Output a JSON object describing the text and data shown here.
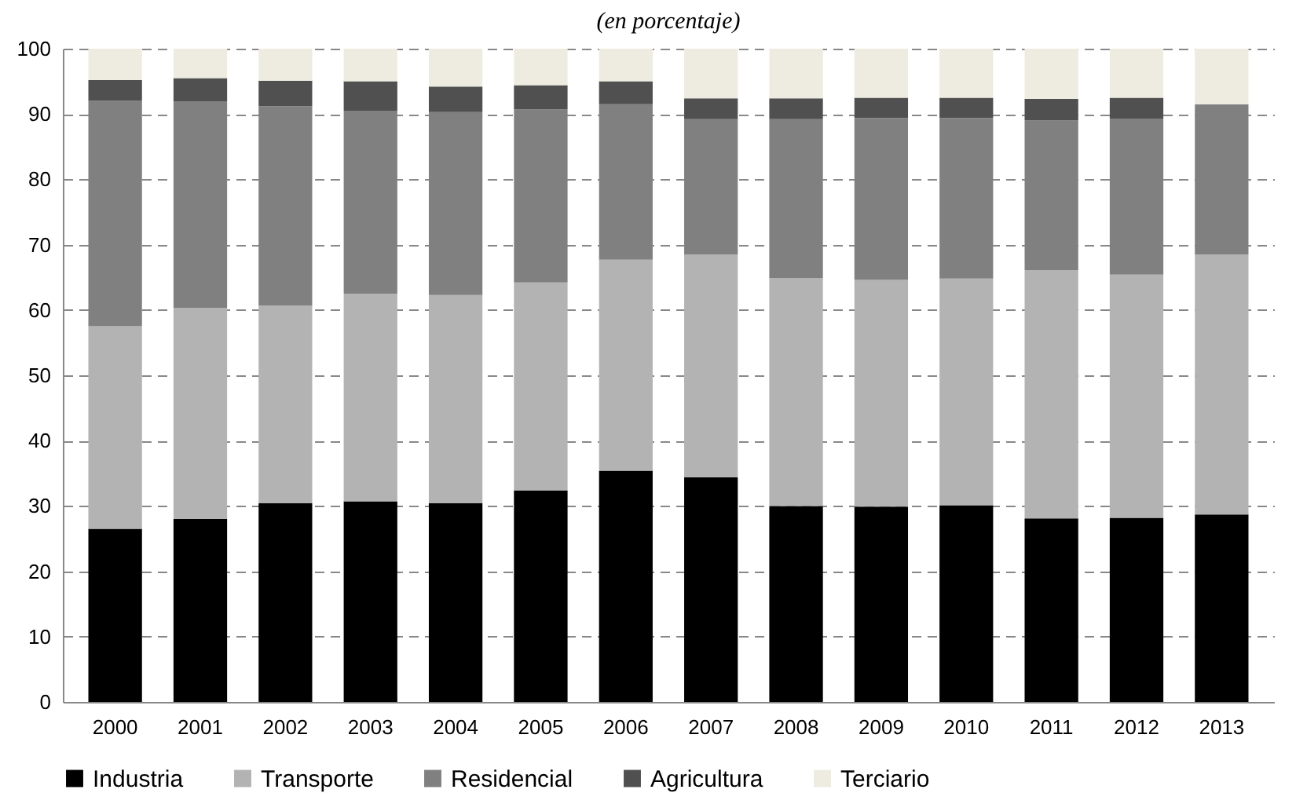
{
  "chart_data": {
    "type": "bar",
    "title": "(en porcentaje)",
    "categories": [
      "2000",
      "2001",
      "2002",
      "2003",
      "2004",
      "2005",
      "2006",
      "2007",
      "2008",
      "2009",
      "2010",
      "2011",
      "2012",
      "2013"
    ],
    "stacked": true,
    "series": [
      {
        "name": "Industria",
        "color": "#000000",
        "values": [
          26.5,
          28.0,
          30.4,
          30.7,
          30.4,
          32.4,
          35.4,
          34.4,
          30.0,
          29.9,
          30.1,
          28.1,
          28.2,
          28.7
        ]
      },
      {
        "name": "Transporte",
        "color": "#b3b3b3",
        "values": [
          31.0,
          32.3,
          30.3,
          31.8,
          31.9,
          31.8,
          32.3,
          34.1,
          34.9,
          34.7,
          34.7,
          38.0,
          37.2,
          39.8
        ]
      },
      {
        "name": "Residencial",
        "color": "#808080",
        "values": [
          34.5,
          31.6,
          30.5,
          28.0,
          28.0,
          26.5,
          23.8,
          20.7,
          24.3,
          24.8,
          24.6,
          22.9,
          23.9,
          23.0
        ]
      },
      {
        "name": "Agricultura",
        "color": "#505050",
        "values": [
          3.2,
          3.6,
          3.9,
          4.5,
          3.9,
          3.7,
          3.5,
          3.2,
          3.2,
          3.1,
          3.1,
          3.3,
          3.2,
          0
        ]
      },
      {
        "name": "Terciario",
        "color": "#eeece1",
        "values": [
          4.8,
          4.5,
          4.9,
          5.0,
          5.8,
          5.6,
          5.0,
          7.6,
          7.6,
          7.5,
          7.5,
          7.7,
          7.5,
          8.5
        ]
      }
    ],
    "ylim": [
      0,
      100
    ],
    "yticks": [
      0,
      10,
      20,
      30,
      40,
      50,
      60,
      70,
      80,
      90,
      100
    ],
    "grid": "y",
    "legend": "bottom"
  }
}
